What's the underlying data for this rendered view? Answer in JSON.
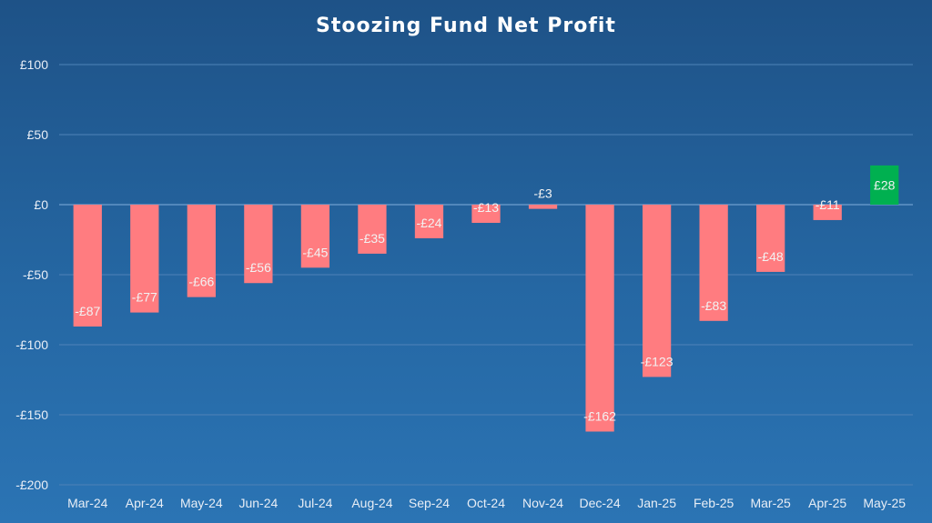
{
  "chart_data": {
    "type": "bar",
    "title": "Stoozing Fund Net Profit",
    "xlabel": "",
    "ylabel": "",
    "categories": [
      "Mar-24",
      "Apr-24",
      "May-24",
      "Jun-24",
      "Jul-24",
      "Aug-24",
      "Sep-24",
      "Oct-24",
      "Nov-24",
      "Dec-24",
      "Jan-25",
      "Feb-25",
      "Mar-25",
      "Apr-25",
      "May-25"
    ],
    "values": [
      -87,
      -77,
      -66,
      -56,
      -45,
      -35,
      -24,
      -13,
      -3,
      -162,
      -123,
      -83,
      -48,
      -11,
      28
    ],
    "data_labels": [
      "-£87",
      "-£77",
      "-£66",
      "-£56",
      "-£45",
      "-£35",
      "-£24",
      "-£13",
      "-£3",
      "-£162",
      "-£123",
      "-£83",
      "-£48",
      "-£11",
      "£28"
    ],
    "ylim": [
      -200,
      100
    ],
    "y_ticks": [
      100,
      50,
      0,
      -50,
      -100,
      -150,
      -200
    ],
    "y_tick_labels": [
      "£100",
      "£50",
      "£0",
      "-£50",
      "-£100",
      "-£150",
      "-£200"
    ],
    "grid": true,
    "legend": "none",
    "colors": {
      "negative": "#ff7c80",
      "positive": "#00b050",
      "gridline": "#4f83b8",
      "background_top": "#1e5287",
      "background_bottom": "#2b74b4",
      "text": "#ffffff"
    }
  }
}
